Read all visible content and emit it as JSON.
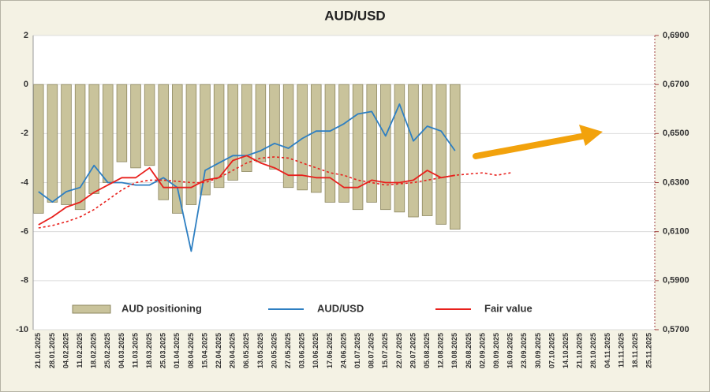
{
  "chart_data": {
    "type": "bar_line",
    "title": "AUD/USD",
    "categories": [
      "21.01.2025",
      "28.01.2025",
      "04.02.2025",
      "11.02.2025",
      "18.02.2025",
      "25.02.2025",
      "04.03.2025",
      "11.03.2025",
      "18.03.2025",
      "25.03.2025",
      "01.04.2025",
      "08.04.2025",
      "15.04.2025",
      "22.04.2025",
      "29.04.2025",
      "06.05.2025",
      "13.05.2025",
      "20.05.2025",
      "27.05.2025",
      "03.06.2025",
      "10.06.2025",
      "17.06.2025",
      "24.06.2025",
      "01.07.2025",
      "08.07.2025",
      "15.07.2025",
      "22.07.2025",
      "29.07.2025",
      "05.08.2025",
      "12.08.2025",
      "19.08.2025",
      "26.08.2025",
      "02.09.2025",
      "09.09.2025",
      "16.09.2025",
      "23.09.2025",
      "30.09.2025",
      "07.10.2025",
      "14.10.2025",
      "21.10.2025",
      "28.10.2025",
      "04.11.2025",
      "11.11.2025",
      "18.11.2025",
      "25.11.2025"
    ],
    "series": [
      {
        "name": "AUD positioning",
        "kind": "bar",
        "color": "#c9c39b",
        "values": [
          -5.25,
          -4.8,
          -4.9,
          -5.1,
          -4.45,
          -4.0,
          -3.15,
          -3.4,
          -3.3,
          -4.7,
          -5.25,
          -4.9,
          -4.5,
          -4.2,
          -3.9,
          -3.55,
          -3.15,
          -3.45,
          -4.2,
          -4.3,
          -4.4,
          -4.8,
          -4.8,
          -5.1,
          -4.8,
          -5.1,
          -5.2,
          -5.4,
          -5.35,
          -5.7,
          -5.9,
          null,
          null,
          null,
          null,
          null,
          null,
          null,
          null,
          null,
          null,
          null,
          null,
          null,
          null
        ]
      },
      {
        "name": "AUD/USD",
        "kind": "line",
        "axis": "y2",
        "color": "#2e7fc2",
        "values": [
          0.6263,
          0.6221,
          0.6263,
          0.628,
          0.637,
          0.63,
          0.63,
          0.629,
          0.629,
          0.632,
          0.628,
          0.602,
          0.635,
          0.638,
          0.641,
          0.641,
          0.643,
          0.646,
          0.644,
          0.648,
          0.651,
          0.651,
          0.654,
          0.658,
          0.659,
          0.649,
          0.662,
          0.647,
          0.653,
          0.651,
          0.643,
          null,
          null,
          null,
          null,
          null,
          null,
          null,
          null,
          null,
          null,
          null,
          null,
          null,
          null
        ]
      },
      {
        "name": "Fair value",
        "kind": "line",
        "axis": "y2",
        "color": "#e8201c",
        "values": [
          0.6128,
          0.616,
          0.62,
          0.622,
          0.626,
          0.629,
          0.632,
          0.632,
          0.636,
          0.628,
          0.628,
          0.628,
          0.631,
          0.632,
          0.639,
          0.641,
          0.638,
          0.636,
          0.633,
          0.633,
          0.632,
          0.632,
          0.628,
          0.628,
          0.631,
          0.63,
          0.63,
          0.631,
          0.635,
          0.632,
          0.633,
          null,
          null,
          null,
          null,
          null,
          null,
          null,
          null,
          null,
          null,
          null,
          null,
          null,
          null
        ]
      },
      {
        "kind": "line",
        "axis": "y2",
        "color": "#e8201c",
        "dashed": true,
        "values": [
          0.6115,
          0.6125,
          0.614,
          0.616,
          0.619,
          0.623,
          0.627,
          0.63,
          0.631,
          0.631,
          0.6305,
          0.63,
          0.63,
          0.632,
          0.635,
          0.638,
          0.64,
          0.6405,
          0.64,
          0.638,
          0.636,
          0.634,
          0.633,
          0.631,
          0.63,
          0.629,
          0.6295,
          0.63,
          0.631,
          0.632,
          0.633,
          0.6335,
          0.634,
          0.633,
          0.634,
          null,
          null,
          null,
          null,
          null,
          null,
          null,
          null,
          null,
          null
        ]
      }
    ],
    "ylim": [
      -10,
      2
    ],
    "yticks": [
      -10,
      -8,
      -6,
      -4,
      -2,
      0,
      2
    ],
    "y2lim": [
      0.57,
      0.69
    ],
    "y2ticks": [
      {
        "value": 0.57,
        "label": "0,5700"
      },
      {
        "value": 0.59,
        "label": "0,5900"
      },
      {
        "value": 0.61,
        "label": "0,6100"
      },
      {
        "value": 0.63,
        "label": "0,6300"
      },
      {
        "value": 0.65,
        "label": "0,6500"
      },
      {
        "value": 0.67,
        "label": "0,6700"
      },
      {
        "value": 0.69,
        "label": "0,6900"
      }
    ],
    "grid": true
  }
}
